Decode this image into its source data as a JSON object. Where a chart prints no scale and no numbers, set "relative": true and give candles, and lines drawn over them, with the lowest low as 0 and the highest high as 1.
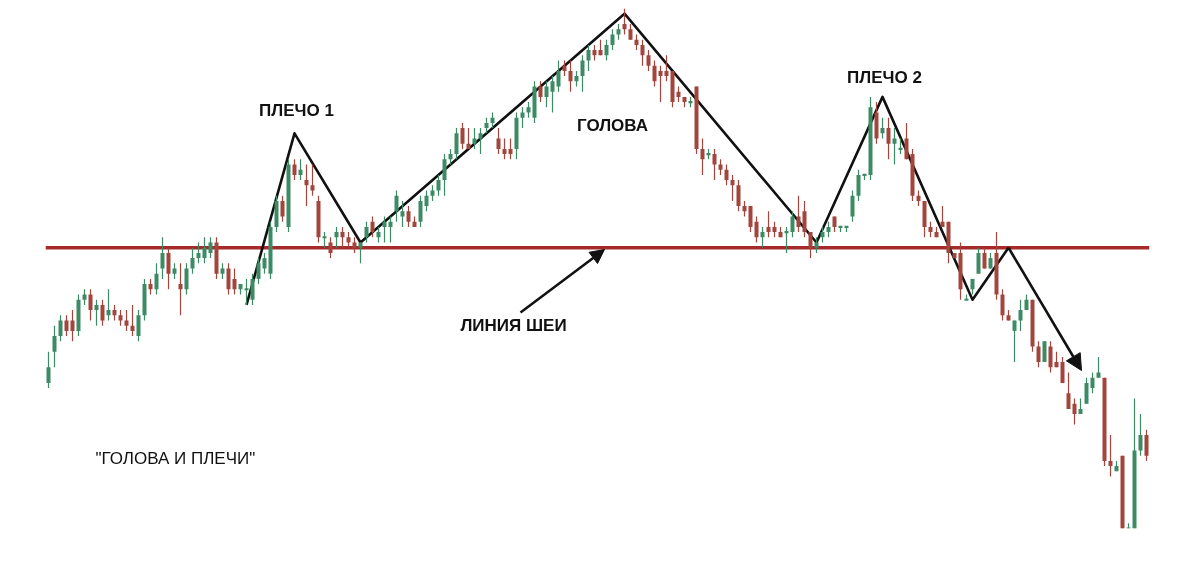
{
  "chart_data": {
    "type": "candlestick",
    "relative": true,
    "categories": [
      null,
      null,
      null,
      null,
      null,
      null,
      null,
      null,
      null,
      null,
      null,
      null,
      null,
      null,
      null,
      null,
      null,
      null,
      null,
      null,
      null,
      null,
      null,
      null,
      null,
      null,
      null,
      null,
      null,
      null,
      null,
      null,
      null,
      null,
      null,
      null,
      null,
      null,
      null,
      null,
      null,
      null,
      null,
      null,
      null,
      null,
      null,
      null,
      null,
      null,
      null,
      null,
      null,
      null,
      null,
      null,
      null,
      null,
      null,
      null,
      null,
      null,
      null,
      null,
      null,
      null,
      null,
      null,
      null,
      null,
      null,
      null,
      null,
      null,
      null,
      null,
      null,
      null,
      null,
      null,
      null,
      null,
      null,
      null,
      null,
      null,
      null,
      null,
      null,
      null,
      null,
      null,
      null,
      null,
      null,
      null,
      null,
      null,
      null,
      null,
      null,
      null,
      null,
      null,
      null,
      null,
      null,
      null,
      null,
      null,
      null,
      null,
      null,
      null,
      null,
      null,
      null,
      null,
      null,
      null,
      null,
      null,
      null,
      null,
      null,
      null,
      null,
      null,
      null,
      null,
      null,
      null,
      null,
      null,
      null,
      null,
      null,
      null,
      null,
      null,
      null,
      null,
      null,
      null,
      null,
      null,
      null,
      null,
      null,
      null,
      null,
      null,
      null,
      null,
      null,
      null,
      null,
      null,
      null,
      null,
      null,
      null,
      null,
      null,
      null,
      null,
      null,
      null,
      null,
      null,
      null,
      null,
      null,
      null,
      null,
      null,
      null,
      null,
      null,
      null,
      null,
      null,
      null,
      null
    ],
    "ohlc": [
      [
        0.28,
        0.34,
        0.27,
        0.31
      ],
      [
        0.34,
        0.39,
        0.31,
        0.37
      ],
      [
        0.37,
        0.41,
        0.36,
        0.4
      ],
      [
        0.4,
        0.41,
        0.37,
        0.38
      ],
      [
        0.4,
        0.42,
        0.36,
        0.38
      ],
      [
        0.38,
        0.45,
        0.37,
        0.44
      ],
      [
        0.44,
        0.46,
        0.43,
        0.45
      ],
      [
        0.45,
        0.46,
        0.4,
        0.42
      ],
      [
        0.42,
        0.44,
        0.39,
        0.43
      ],
      [
        0.43,
        0.44,
        0.39,
        0.4
      ],
      [
        0.41,
        0.46,
        0.4,
        0.42
      ],
      [
        0.42,
        0.43,
        0.4,
        0.41
      ],
      [
        0.41,
        0.42,
        0.39,
        0.4
      ],
      [
        0.4,
        0.42,
        0.38,
        0.39
      ],
      [
        0.39,
        0.43,
        0.37,
        0.38
      ],
      [
        0.37,
        0.42,
        0.36,
        0.41
      ],
      [
        0.41,
        0.48,
        0.4,
        0.47
      ],
      [
        0.47,
        0.48,
        0.45,
        0.46
      ],
      [
        0.46,
        0.51,
        0.45,
        0.49
      ],
      [
        0.5,
        0.56,
        0.48,
        0.53
      ],
      [
        0.53,
        0.54,
        0.46,
        0.49
      ],
      [
        0.49,
        0.51,
        0.48,
        0.5
      ],
      [
        0.47,
        0.51,
        0.41,
        0.46
      ],
      [
        0.46,
        0.51,
        0.45,
        0.5
      ],
      [
        0.5,
        0.54,
        0.49,
        0.52
      ],
      [
        0.52,
        0.55,
        0.51,
        0.53
      ],
      [
        0.52,
        0.56,
        0.51,
        0.54
      ],
      [
        0.53,
        0.56,
        0.52,
        0.55
      ],
      [
        0.55,
        0.56,
        0.48,
        0.49
      ],
      [
        0.49,
        0.51,
        0.48,
        0.5
      ],
      [
        0.5,
        0.51,
        0.45,
        0.46
      ],
      [
        0.48,
        0.5,
        0.45,
        0.46
      ],
      [
        0.46,
        0.47,
        0.45,
        0.47
      ],
      [
        0.46,
        0.48,
        0.43,
        0.46
      ],
      [
        0.44,
        0.49,
        0.43,
        0.48
      ],
      [
        0.48,
        0.52,
        0.47,
        0.51
      ],
      [
        0.5,
        0.53,
        0.49,
        0.52
      ],
      [
        0.49,
        0.59,
        0.48,
        0.58
      ],
      [
        0.58,
        0.64,
        0.57,
        0.63
      ],
      [
        0.63,
        0.64,
        0.59,
        0.6
      ],
      [
        0.58,
        0.71,
        0.57,
        0.7
      ],
      [
        0.7,
        0.71,
        0.67,
        0.68
      ],
      [
        0.68,
        0.71,
        0.67,
        0.69
      ],
      [
        0.67,
        0.7,
        0.62,
        0.66
      ],
      [
        0.66,
        0.7,
        0.64,
        0.65
      ],
      [
        0.63,
        0.64,
        0.55,
        0.56
      ],
      [
        0.56,
        0.57,
        0.54,
        0.56
      ],
      [
        0.55,
        0.56,
        0.52,
        0.53
      ],
      [
        0.56,
        0.58,
        0.54,
        0.57
      ],
      [
        0.57,
        0.58,
        0.54,
        0.56
      ],
      [
        0.56,
        0.57,
        0.54,
        0.55
      ],
      [
        0.55,
        0.56,
        0.53,
        0.54
      ],
      [
        0.54,
        0.55,
        0.51,
        0.55
      ],
      [
        0.56,
        0.59,
        0.55,
        0.58
      ],
      [
        0.59,
        0.6,
        0.56,
        0.57
      ],
      [
        0.56,
        0.58,
        0.55,
        0.57
      ],
      [
        0.58,
        0.6,
        0.55,
        0.59
      ],
      [
        0.58,
        0.6,
        0.55,
        0.59
      ],
      [
        0.61,
        0.65,
        0.59,
        0.64
      ],
      [
        0.6,
        0.63,
        0.58,
        0.61
      ],
      [
        0.61,
        0.62,
        0.58,
        0.59
      ],
      [
        0.59,
        0.6,
        0.58,
        0.58
      ],
      [
        0.59,
        0.64,
        0.58,
        0.63
      ],
      [
        0.62,
        0.65,
        0.61,
        0.64
      ],
      [
        0.64,
        0.66,
        0.63,
        0.65
      ],
      [
        0.65,
        0.68,
        0.64,
        0.67
      ],
      [
        0.67,
        0.72,
        0.64,
        0.71
      ],
      [
        0.71,
        0.73,
        0.7,
        0.72
      ],
      [
        0.72,
        0.77,
        0.71,
        0.76
      ],
      [
        0.77,
        0.78,
        0.73,
        0.74
      ],
      [
        0.74,
        0.77,
        0.73,
        0.73
      ],
      [
        0.74,
        0.77,
        0.73,
        0.75
      ],
      [
        0.75,
        0.77,
        0.72,
        0.76
      ],
      [
        0.77,
        0.79,
        0.76,
        0.78
      ],
      [
        0.78,
        0.8,
        0.77,
        0.79
      ],
      [
        0.75,
        0.77,
        0.72,
        0.73
      ],
      [
        0.73,
        0.75,
        0.71,
        0.72
      ],
      [
        0.73,
        0.75,
        0.71,
        0.72
      ],
      [
        0.73,
        0.8,
        0.71,
        0.79
      ],
      [
        0.79,
        0.81,
        0.77,
        0.8
      ],
      [
        0.8,
        0.82,
        0.79,
        0.81
      ],
      [
        0.79,
        0.86,
        0.78,
        0.85
      ],
      [
        0.85,
        0.86,
        0.82,
        0.83
      ],
      [
        0.83,
        0.86,
        0.81,
        0.85
      ],
      [
        0.84,
        0.87,
        0.8,
        0.86
      ],
      [
        0.85,
        0.9,
        0.84,
        0.88
      ],
      [
        0.89,
        0.9,
        0.87,
        0.88
      ],
      [
        0.88,
        0.9,
        0.84,
        0.86
      ],
      [
        0.86,
        0.88,
        0.85,
        0.87
      ],
      [
        0.87,
        0.91,
        0.84,
        0.9
      ],
      [
        0.9,
        0.93,
        0.88,
        0.92
      ],
      [
        0.92,
        0.93,
        0.9,
        0.91
      ],
      [
        0.92,
        0.94,
        0.91,
        0.91
      ],
      [
        0.91,
        0.94,
        0.9,
        0.93
      ],
      [
        0.93,
        0.96,
        0.92,
        0.95
      ],
      [
        0.95,
        0.97,
        0.94,
        0.96
      ],
      [
        0.97,
        1.0,
        0.95,
        0.96
      ],
      [
        0.96,
        0.97,
        0.94,
        0.94
      ],
      [
        0.94,
        0.95,
        0.92,
        0.93
      ],
      [
        0.93,
        0.94,
        0.89,
        0.91
      ],
      [
        0.91,
        0.92,
        0.88,
        0.89
      ],
      [
        0.89,
        0.9,
        0.85,
        0.86
      ],
      [
        0.88,
        0.89,
        0.82,
        0.87
      ],
      [
        0.88,
        0.91,
        0.86,
        0.87
      ],
      [
        0.88,
        0.88,
        0.81,
        0.82
      ],
      [
        0.84,
        0.85,
        0.82,
        0.83
      ],
      [
        0.83,
        0.83,
        0.81,
        0.82
      ],
      [
        0.82,
        0.83,
        0.81,
        0.82
      ],
      [
        0.85,
        0.85,
        0.72,
        0.73
      ],
      [
        0.73,
        0.75,
        0.68,
        0.71
      ],
      [
        0.72,
        0.73,
        0.71,
        0.72
      ],
      [
        0.72,
        0.73,
        0.67,
        0.7
      ],
      [
        0.7,
        0.71,
        0.68,
        0.69
      ],
      [
        0.69,
        0.7,
        0.66,
        0.67
      ],
      [
        0.67,
        0.68,
        0.63,
        0.66
      ],
      [
        0.66,
        0.67,
        0.61,
        0.62
      ],
      [
        0.62,
        0.63,
        0.6,
        0.61
      ],
      [
        0.62,
        0.62,
        0.57,
        0.58
      ],
      [
        0.59,
        0.6,
        0.55,
        0.56
      ],
      [
        0.56,
        0.58,
        0.54,
        0.57
      ],
      [
        0.58,
        0.61,
        0.56,
        0.57
      ],
      [
        0.58,
        0.59,
        0.56,
        0.57
      ],
      [
        0.57,
        0.58,
        0.56,
        0.56
      ],
      [
        0.57,
        0.58,
        0.53,
        0.57
      ],
      [
        0.57,
        0.61,
        0.56,
        0.6
      ],
      [
        0.6,
        0.64,
        0.57,
        0.58
      ],
      [
        0.61,
        0.63,
        0.56,
        0.57
      ],
      [
        0.57,
        0.57,
        0.52,
        0.54
      ],
      [
        0.54,
        0.56,
        0.53,
        0.55
      ],
      [
        0.56,
        0.58,
        0.55,
        0.57
      ],
      [
        0.57,
        0.59,
        0.56,
        0.58
      ],
      [
        0.6,
        0.6,
        0.57,
        0.58
      ],
      [
        0.58,
        0.58,
        0.57,
        0.58
      ],
      [
        0.58,
        0.58,
        0.57,
        0.58
      ],
      [
        0.6,
        0.65,
        0.59,
        0.64
      ],
      [
        0.64,
        0.69,
        0.63,
        0.68
      ],
      [
        0.68,
        0.68,
        0.67,
        0.68
      ],
      [
        0.68,
        0.83,
        0.67,
        0.81
      ],
      [
        0.8,
        0.82,
        0.74,
        0.75
      ],
      [
        0.76,
        0.79,
        0.75,
        0.77
      ],
      [
        0.77,
        0.79,
        0.71,
        0.74
      ],
      [
        0.74,
        0.77,
        0.7,
        0.75
      ],
      [
        0.73,
        0.75,
        0.72,
        0.73
      ],
      [
        0.75,
        0.78,
        0.71,
        0.71
      ],
      [
        0.72,
        0.73,
        0.63,
        0.64
      ],
      [
        0.64,
        0.65,
        0.62,
        0.63
      ],
      [
        0.63,
        0.63,
        0.56,
        0.58
      ],
      [
        0.58,
        0.59,
        0.56,
        0.57
      ],
      [
        0.57,
        0.58,
        0.56,
        0.56
      ],
      [
        0.59,
        0.62,
        0.58,
        0.58
      ],
      [
        0.59,
        0.59,
        0.51,
        0.53
      ],
      [
        0.53,
        0.53,
        0.52,
        0.52
      ],
      [
        0.53,
        0.55,
        0.44,
        0.46
      ],
      [
        0.44,
        0.45,
        0.44,
        0.44
      ],
      [
        0.46,
        0.48,
        0.45,
        0.48
      ],
      [
        0.49,
        0.54,
        0.49,
        0.53
      ],
      [
        0.53,
        0.54,
        0.5,
        0.5
      ],
      [
        0.5,
        0.53,
        0.5,
        0.52
      ],
      [
        0.53,
        0.57,
        0.44,
        0.45
      ],
      [
        0.45,
        0.46,
        0.4,
        0.41
      ],
      [
        0.41,
        0.42,
        0.4,
        0.4
      ],
      [
        0.38,
        0.4,
        0.32,
        0.4
      ],
      [
        0.4,
        0.44,
        0.38,
        0.42
      ],
      [
        0.42,
        0.45,
        0.42,
        0.44
      ],
      [
        0.44,
        0.44,
        0.34,
        0.35
      ],
      [
        0.35,
        0.36,
        0.31,
        0.32
      ],
      [
        0.32,
        0.36,
        0.32,
        0.36
      ],
      [
        0.35,
        0.36,
        0.3,
        0.31
      ],
      [
        0.32,
        0.34,
        0.31,
        0.31
      ],
      [
        0.32,
        0.33,
        0.28,
        0.28
      ],
      [
        0.26,
        0.3,
        0.23,
        0.23
      ],
      [
        0.24,
        0.25,
        0.2,
        0.22
      ],
      [
        0.22,
        0.25,
        0.22,
        0.23
      ],
      [
        0.24,
        0.29,
        0.24,
        0.28
      ],
      [
        0.27,
        0.3,
        0.26,
        0.29
      ],
      [
        0.29,
        0.33,
        0.29,
        0.3
      ],
      [
        0.29,
        0.29,
        0.12,
        0.13
      ],
      [
        0.13,
        0.18,
        0.1,
        0.12
      ],
      [
        0.11,
        0.13,
        0.11,
        0.12
      ],
      [
        0.14,
        0.14,
        0.0,
        0.0
      ],
      [
        0.0,
        0.01,
        0.0,
        0.0
      ],
      [
        0.0,
        0.25,
        0.0,
        0.15
      ],
      [
        0.15,
        0.22,
        0.14,
        0.18
      ],
      [
        0.18,
        0.19,
        0.13,
        0.14
      ]
    ],
    "colors": [
      "#3d8b64",
      "#3d8b64",
      "#3d8b64",
      "#a3443d",
      "#a3443d",
      "#3d8b64",
      "#3d8b64",
      "#a3443d",
      "#3d8b64",
      "#a3443d",
      "#3d8b64",
      "#a3443d",
      "#a3443d",
      "#a3443d",
      "#a3443d",
      "#3d8b64",
      "#3d8b64",
      "#a3443d",
      "#3d8b64",
      "#3d8b64",
      "#a3443d",
      "#3d8b64",
      "#a3443d",
      "#3d8b64",
      "#3d8b64",
      "#3d8b64",
      "#3d8b64",
      "#3d8b64",
      "#a3443d",
      "#3d8b64",
      "#a3443d",
      "#a3443d",
      "#3d8b64",
      "#3d8b64",
      "#3d8b64",
      "#3d8b64",
      "#3d8b64",
      "#3d8b64",
      "#3d8b64",
      "#a3443d",
      "#3d8b64",
      "#a3443d",
      "#3d8b64",
      "#a3443d",
      "#a3443d",
      "#a3443d",
      "#3d8b64",
      "#a3443d",
      "#3d8b64",
      "#a3443d",
      "#a3443d",
      "#a3443d",
      "#3d8b64",
      "#3d8b64",
      "#a3443d",
      "#3d8b64",
      "#3d8b64",
      "#3d8b64",
      "#3d8b64",
      "#3d8b64",
      "#a3443d",
      "#a3443d",
      "#3d8b64",
      "#3d8b64",
      "#3d8b64",
      "#3d8b64",
      "#3d8b64",
      "#3d8b64",
      "#3d8b64",
      "#a3443d",
      "#a3443d",
      "#3d8b64",
      "#3d8b64",
      "#3d8b64",
      "#3d8b64",
      "#a3443d",
      "#a3443d",
      "#a3443d",
      "#3d8b64",
      "#3d8b64",
      "#3d8b64",
      "#3d8b64",
      "#a3443d",
      "#3d8b64",
      "#3d8b64",
      "#3d8b64",
      "#a3443d",
      "#a3443d",
      "#3d8b64",
      "#3d8b64",
      "#3d8b64",
      "#a3443d",
      "#a3443d",
      "#3d8b64",
      "#3d8b64",
      "#3d8b64",
      "#a3443d",
      "#a3443d",
      "#a3443d",
      "#a3443d",
      "#a3443d",
      "#a3443d",
      "#a3443d",
      "#a3443d",
      "#a3443d",
      "#a3443d",
      "#a3443d",
      "#3d8b64",
      "#a3443d",
      "#a3443d",
      "#3d8b64",
      "#a3443d",
      "#a3443d",
      "#a3443d",
      "#a3443d",
      "#a3443d",
      "#a3443d",
      "#a3443d",
      "#a3443d",
      "#3d8b64",
      "#a3443d",
      "#a3443d",
      "#a3443d",
      "#3d8b64",
      "#3d8b64",
      "#a3443d",
      "#a3443d",
      "#a3443d",
      "#3d8b64",
      "#3d8b64",
      "#3d8b64",
      "#a3443d",
      "#3d8b64",
      "#3d8b64",
      "#3d8b64",
      "#3d8b64",
      "#3d8b64",
      "#3d8b64",
      "#a3443d",
      "#3d8b64",
      "#a3443d",
      "#3d8b64",
      "#3d8b64",
      "#a3443d",
      "#a3443d",
      "#a3443d",
      "#a3443d",
      "#a3443d",
      "#a3443d",
      "#a3443d",
      "#a3443d",
      "#a3443d",
      "#a3443d",
      "#3d8b64",
      "#3d8b64",
      "#3d8b64",
      "#a3443d",
      "#3d8b64",
      "#a3443d",
      "#a3443d",
      "#a3443d",
      "#3d8b64",
      "#3d8b64",
      "#3d8b64",
      "#a3443d",
      "#a3443d",
      "#3d8b64",
      "#a3443d",
      "#a3443d",
      "#a3443d",
      "#a3443d",
      "#a3443d",
      "#3d8b64",
      "#3d8b64",
      "#3d8b64",
      "#3d8b64",
      "#a3443d",
      "#a3443d",
      "#3d8b64",
      "#a3443d",
      "#3d8b64",
      "#3d8b64",
      "#3d8b64",
      "#a3443d"
    ],
    "series": [
      {
        "type": "line",
        "color": "#111111",
        "values": [
          null,
          null,
          null,
          null,
          null,
          null,
          null,
          null,
          null,
          null,
          null,
          null,
          null,
          null,
          null,
          null,
          null,
          null,
          null,
          null,
          null,
          null,
          null,
          null,
          null,
          null,
          null,
          null,
          null,
          null,
          null,
          null,
          null,
          0.43,
          null,
          null,
          null,
          null,
          null,
          null,
          null,
          0.76,
          null,
          null,
          null,
          null,
          null,
          null,
          null,
          null,
          null,
          null,
          0.55,
          null,
          null,
          null,
          null,
          null,
          null,
          null,
          null,
          null,
          null,
          null,
          null,
          null,
          null,
          null,
          null,
          null,
          null,
          null,
          null,
          null,
          null,
          null,
          null,
          null,
          null,
          null,
          null,
          null,
          null,
          null,
          null,
          null,
          null,
          null,
          null,
          null,
          null,
          null,
          null,
          null,
          null,
          null,
          0.99,
          null,
          null,
          null,
          null,
          null,
          null,
          null,
          null,
          null,
          null,
          null,
          null,
          null,
          null,
          null,
          null,
          null,
          null,
          null,
          null,
          null,
          null,
          null,
          null,
          null,
          null,
          null,
          null,
          null,
          null,
          null,
          0.55,
          null,
          null,
          null,
          null,
          null,
          null,
          null,
          null,
          null,
          null,
          0.83,
          null,
          null,
          null,
          null,
          null,
          null,
          null,
          null,
          null,
          null,
          null,
          null,
          null,
          null,
          0.44,
          null,
          null,
          null,
          null,
          null,
          0.54,
          null,
          null,
          null,
          null,
          null,
          null,
          null,
          null,
          null,
          null,
          null,
          null,
          null,
          null,
          null,
          null,
          null,
          null,
          null,
          null,
          null,
          null,
          null
        ]
      }
    ],
    "ref_lines": [
      {
        "axis": "y",
        "value": 0.54,
        "label": "ЛИНИЯ ШЕИ",
        "color": "#a52a2a"
      }
    ],
    "annotations": [
      "ПЛЕЧО 1",
      "ГОЛОВА",
      "ПЛЕЧО 2",
      "\"ГОЛОВА И ПЛЕЧИ\""
    ]
  }
}
